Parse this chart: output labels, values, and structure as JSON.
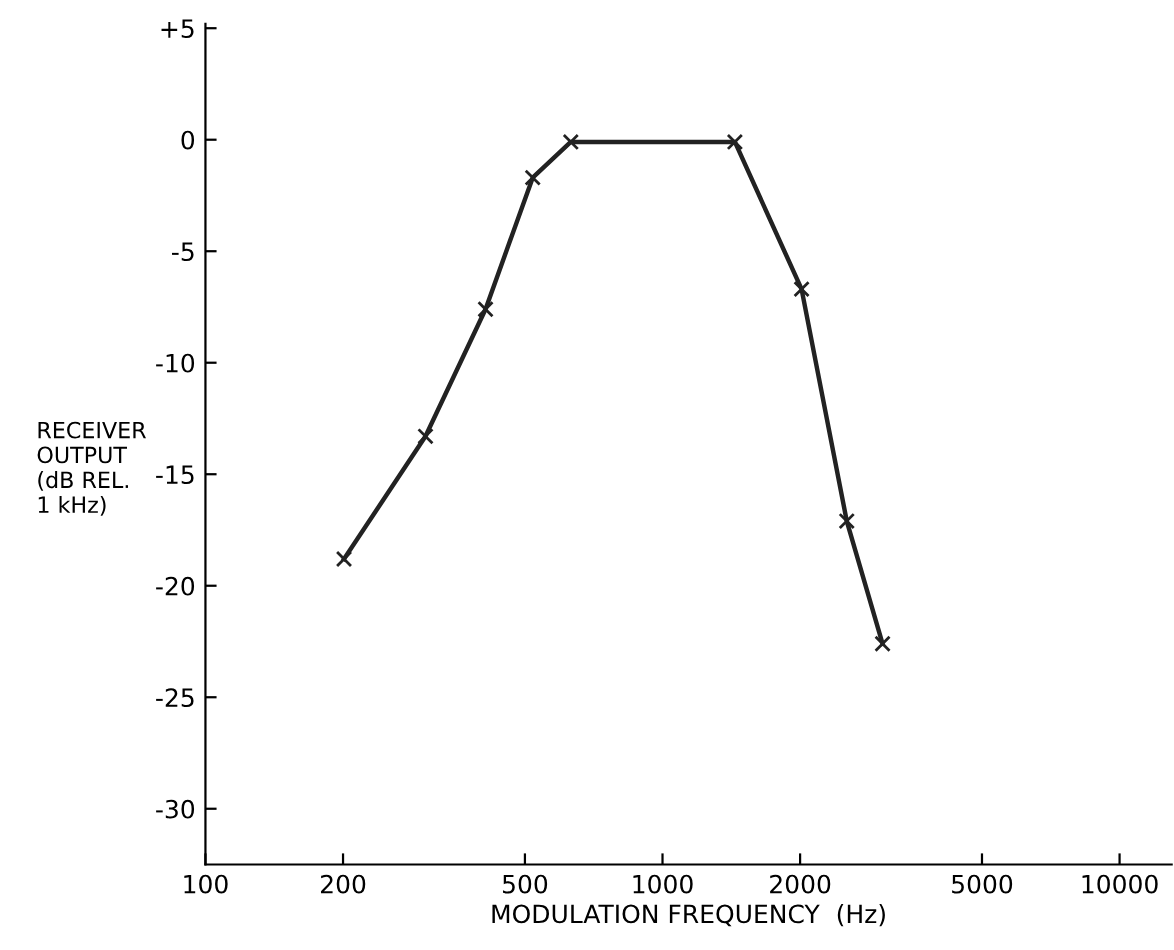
{
  "chart_data": {
    "type": "line",
    "xlabel": "MODULATION FREQUENCY  (Hz)",
    "ylabel": "RECEIVER\nOUTPUT\n(dB REL.\n1 kHz)",
    "x": [
      201,
      303,
      410,
      520,
      630,
      1440,
      2015,
      2530,
      3030
    ],
    "series": [
      {
        "color": "#222222",
        "values": [
          -18.8,
          -13.3,
          -7.6,
          -1.7,
          -0.1,
          -0.1,
          -6.7,
          -17.1,
          -22.6
        ]
      }
    ],
    "log": "x",
    "xlim": [
      100,
      13000
    ],
    "xticks": [
      100,
      200,
      500,
      1000,
      2000,
      5000,
      10000
    ],
    "ylim": [
      -32.5,
      5.2
    ],
    "yticks": [
      {
        "value": 5,
        "label": "+5"
      },
      0,
      {
        "value": -5,
        "label": "-5"
      },
      {
        "value": -10,
        "label": "-10"
      },
      {
        "value": -15,
        "label": "-15"
      },
      {
        "value": -20,
        "label": "-20"
      },
      {
        "value": -25,
        "label": "-25"
      },
      {
        "value": -30,
        "label": "-30"
      }
    ],
    "marker": "cross",
    "line_style": "solid",
    "grid": false,
    "legend": false
  }
}
